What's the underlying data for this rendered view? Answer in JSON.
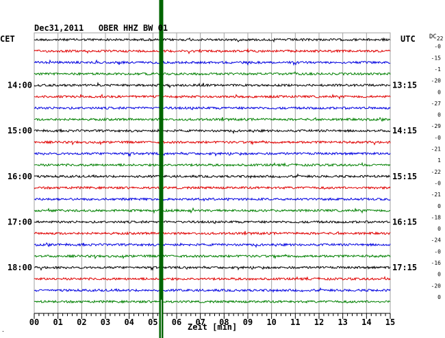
{
  "header": {
    "title": "Dec31,2011   OBER HHZ BW 01",
    "left_label": "CET",
    "right_label": "UTC",
    "dc_label": "DC",
    "dc_sub": "22",
    "corner_mark": "·"
  },
  "chart_data": {
    "type": "line",
    "title": "Dec31,2011   OBER HHZ BW 01",
    "xlabel": "Zeit [min]",
    "ylabel": "",
    "xlim": [
      0,
      15
    ],
    "x_tick_labels": [
      "00",
      "01",
      "02",
      "03",
      "04",
      "05",
      "06",
      "07",
      "08",
      "09",
      "10",
      "11",
      "12",
      "13",
      "14",
      "15"
    ],
    "rows": 24,
    "row_colors": [
      "#000000",
      "#e00000",
      "#0000e0",
      "#008000"
    ],
    "left_time_labels": [
      {
        "row": 4,
        "label": "14:00"
      },
      {
        "row": 8,
        "label": "15:00"
      },
      {
        "row": 12,
        "label": "16:00"
      },
      {
        "row": 16,
        "label": "17:00"
      },
      {
        "row": 20,
        "label": "18:00"
      }
    ],
    "right_time_labels": [
      {
        "row": 4,
        "label": "13:15"
      },
      {
        "row": 8,
        "label": "14:15"
      },
      {
        "row": 12,
        "label": "15:15"
      },
      {
        "row": 16,
        "label": "16:15"
      },
      {
        "row": 20,
        "label": "17:15"
      }
    ],
    "dc_offsets": [
      "-0",
      "-15",
      "-1",
      "-20",
      "0",
      "-27",
      "0",
      "-29",
      "-0",
      "-21",
      "1",
      "-22",
      "-0",
      "-21",
      "0",
      "-18",
      "0",
      "-24",
      "-0",
      "-16",
      "0",
      "-20",
      "0"
    ],
    "event_marker": {
      "x_min": 5.35,
      "color": "#006400"
    },
    "grid": true
  }
}
